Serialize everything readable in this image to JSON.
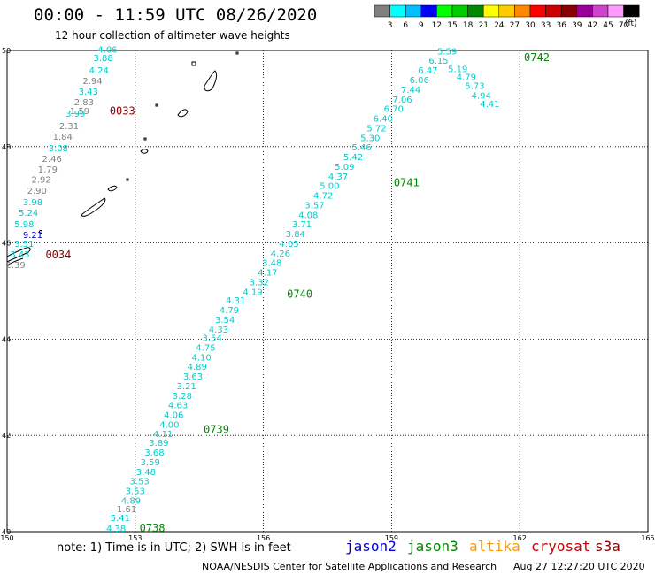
{
  "title": "00:00 - 11:59 UTC 08/26/2020",
  "subtitle": "12 hour collection of altimeter wave heights",
  "legend": {
    "colors": [
      "#808080",
      "#00ffff",
      "#00bfff",
      "#0000ff",
      "#00ff00",
      "#00cc00",
      "#008800",
      "#ffff00",
      "#ffcc00",
      "#ff8800",
      "#ff0000",
      "#cc0000",
      "#880000",
      "#990099",
      "#cc44cc",
      "#ff99ff",
      "#000000"
    ],
    "ticks": [
      "3",
      "6",
      "9",
      "12",
      "15",
      "18",
      "21",
      "24",
      "27",
      "30",
      "33",
      "36",
      "39",
      "42",
      "45",
      "70"
    ],
    "unit": "(ft)"
  },
  "map": {
    "lon_ticks": [
      "150",
      "153",
      "156",
      "159",
      "162",
      "165"
    ],
    "lat_ticks": [
      "50",
      "48",
      "46",
      "44",
      "42",
      "40"
    ],
    "lon_range": [
      150,
      165
    ],
    "lat_range": [
      40,
      50
    ],
    "grid": true
  },
  "tracks": [
    {
      "label": "0033",
      "label_lon": 152.4,
      "label_lat": 48.67,
      "label_color": "#880000",
      "points": [
        {
          "v": "4.06",
          "lon": 152.35,
          "lat": 49.95,
          "c": "#00cccc"
        },
        {
          "v": "3.88",
          "lon": 152.25,
          "lat": 49.78,
          "c": "#00cccc"
        },
        {
          "v": "4.24",
          "lon": 152.15,
          "lat": 49.52,
          "c": "#00cccc"
        },
        {
          "v": "2.94",
          "lon": 152.0,
          "lat": 49.3,
          "c": "#808080"
        },
        {
          "v": "3.43",
          "lon": 151.9,
          "lat": 49.08,
          "c": "#00cccc"
        },
        {
          "v": "2.83",
          "lon": 151.8,
          "lat": 48.86,
          "c": "#808080"
        },
        {
          "v": "1.59",
          "lon": 151.7,
          "lat": 48.68,
          "c": "#808080"
        },
        {
          "v": "3.99",
          "lon": 151.6,
          "lat": 48.62,
          "c": "#00cccc"
        },
        {
          "v": "2.31",
          "lon": 151.45,
          "lat": 48.36,
          "c": "#808080"
        },
        {
          "v": "1.84",
          "lon": 151.3,
          "lat": 48.14,
          "c": "#808080"
        },
        {
          "v": "3.08",
          "lon": 151.2,
          "lat": 47.9,
          "c": "#00cccc"
        },
        {
          "v": "2.46",
          "lon": 151.05,
          "lat": 47.68,
          "c": "#808080"
        },
        {
          "v": "1.79",
          "lon": 150.95,
          "lat": 47.46,
          "c": "#808080"
        },
        {
          "v": "2.92",
          "lon": 150.8,
          "lat": 47.25,
          "c": "#808080"
        },
        {
          "v": "2.90",
          "lon": 150.7,
          "lat": 47.02,
          "c": "#808080"
        },
        {
          "v": "3.98",
          "lon": 150.6,
          "lat": 46.78,
          "c": "#00cccc"
        },
        {
          "v": "5.24",
          "lon": 150.5,
          "lat": 46.56,
          "c": "#00cccc"
        },
        {
          "v": "5.98",
          "lon": 150.4,
          "lat": 46.32,
          "c": "#00cccc"
        }
      ]
    },
    {
      "label": "0034",
      "label_lon": 150.9,
      "label_lat": 45.68,
      "label_color": "#880000",
      "points": [
        {
          "v": "9.21",
          "lon": 150.6,
          "lat": 46.1,
          "c": "#0000cc"
        },
        {
          "v": "3.51",
          "lon": 150.4,
          "lat": 45.92,
          "c": "#00cccc"
        },
        {
          "v": "3.43",
          "lon": 150.3,
          "lat": 45.7,
          "c": "#00cccc"
        },
        {
          "v": "2.39",
          "lon": 150.2,
          "lat": 45.48,
          "c": "#808080"
        }
      ]
    },
    {
      "label": "0738",
      "label_lon": 153.1,
      "label_lat": 40.0,
      "label_color": "#008800",
      "points": [
        {
          "v": "4.38",
          "lon": 152.55,
          "lat": 40.0,
          "c": "#00cccc"
        },
        {
          "v": "5.41",
          "lon": 152.65,
          "lat": 40.22,
          "c": "#00cccc"
        },
        {
          "v": "1.61",
          "lon": 152.8,
          "lat": 40.4,
          "c": "#808080"
        },
        {
          "v": "4.89",
          "lon": 152.9,
          "lat": 40.58,
          "c": "#00cccc"
        },
        {
          "v": "3.53",
          "lon": 153.0,
          "lat": 40.78,
          "c": "#00cccc"
        },
        {
          "v": "3.53",
          "lon": 153.1,
          "lat": 40.98,
          "c": "#00cccc"
        },
        {
          "v": "3.48",
          "lon": 153.25,
          "lat": 41.18,
          "c": "#00cccc"
        },
        {
          "v": "3.59",
          "lon": 153.35,
          "lat": 41.38,
          "c": "#00cccc"
        },
        {
          "v": "3.68",
          "lon": 153.45,
          "lat": 41.58,
          "c": "#00cccc"
        },
        {
          "v": "3.89",
          "lon": 153.55,
          "lat": 41.78,
          "c": "#00cccc"
        },
        {
          "v": "4.11",
          "lon": 153.65,
          "lat": 41.97,
          "c": "#00cccc"
        }
      ]
    },
    {
      "label": "0739",
      "label_lon": 154.6,
      "label_lat": 42.05,
      "label_color": "#008800",
      "points": [
        {
          "v": "4.00",
          "lon": 153.8,
          "lat": 42.16,
          "c": "#00cccc"
        },
        {
          "v": "4.06",
          "lon": 153.9,
          "lat": 42.36,
          "c": "#00cccc"
        },
        {
          "v": "4.63",
          "lon": 154.0,
          "lat": 42.56,
          "c": "#00cccc"
        },
        {
          "v": "3.28",
          "lon": 154.1,
          "lat": 42.76,
          "c": "#00cccc"
        },
        {
          "v": "3.21",
          "lon": 154.2,
          "lat": 42.96,
          "c": "#00cccc"
        },
        {
          "v": "3.63",
          "lon": 154.35,
          "lat": 43.16,
          "c": "#00cccc"
        },
        {
          "v": "4.89",
          "lon": 154.45,
          "lat": 43.36,
          "c": "#00cccc"
        },
        {
          "v": "4.10",
          "lon": 154.55,
          "lat": 43.56,
          "c": "#00cccc"
        },
        {
          "v": "4.75",
          "lon": 154.65,
          "lat": 43.76,
          "c": "#00cccc"
        },
        {
          "v": "3.54",
          "lon": 154.8,
          "lat": 43.96,
          "c": "#00cccc"
        },
        {
          "v": "4.33",
          "lon": 154.95,
          "lat": 44.14,
          "c": "#00cccc"
        },
        {
          "v": "3.54",
          "lon": 155.1,
          "lat": 44.34,
          "c": "#00cccc"
        },
        {
          "v": "4.79",
          "lon": 155.2,
          "lat": 44.54,
          "c": "#00cccc"
        },
        {
          "v": "4.31",
          "lon": 155.35,
          "lat": 44.74,
          "c": "#00cccc"
        }
      ]
    },
    {
      "label": "0740",
      "label_lon": 156.55,
      "label_lat": 44.86,
      "label_color": "#008800",
      "points": [
        {
          "v": "4.19",
          "lon": 155.75,
          "lat": 44.92,
          "c": "#00cccc"
        },
        {
          "v": "3.32",
          "lon": 155.9,
          "lat": 45.12,
          "c": "#00cccc"
        },
        {
          "v": "4.17",
          "lon": 156.1,
          "lat": 45.32,
          "c": "#00cccc"
        },
        {
          "v": "3.48",
          "lon": 156.2,
          "lat": 45.52,
          "c": "#00cccc"
        },
        {
          "v": "4.26",
          "lon": 156.4,
          "lat": 45.72,
          "c": "#00cccc"
        },
        {
          "v": "4.05",
          "lon": 156.6,
          "lat": 45.92,
          "c": "#00cccc"
        },
        {
          "v": "3.84",
          "lon": 156.75,
          "lat": 46.12,
          "c": "#00cccc"
        },
        {
          "v": "3.71",
          "lon": 156.9,
          "lat": 46.32,
          "c": "#00cccc"
        },
        {
          "v": "4.08",
          "lon": 157.05,
          "lat": 46.52,
          "c": "#00cccc"
        },
        {
          "v": "3.57",
          "lon": 157.2,
          "lat": 46.72,
          "c": "#00cccc"
        },
        {
          "v": "4.72",
          "lon": 157.4,
          "lat": 46.92,
          "c": "#00cccc"
        },
        {
          "v": "5.00",
          "lon": 157.55,
          "lat": 47.12,
          "c": "#00cccc"
        },
        {
          "v": "4.37",
          "lon": 157.75,
          "lat": 47.32,
          "c": "#00cccc"
        },
        {
          "v": "5.09",
          "lon": 157.9,
          "lat": 47.52,
          "c": "#00cccc"
        },
        {
          "v": "5.42",
          "lon": 158.1,
          "lat": 47.72,
          "c": "#00cccc"
        },
        {
          "v": "5.46",
          "lon": 158.3,
          "lat": 47.92,
          "c": "#00cccc"
        },
        {
          "v": "5.30",
          "lon": 158.5,
          "lat": 48.12,
          "c": "#00cccc"
        }
      ]
    },
    {
      "label": "0741",
      "label_lon": 159.05,
      "label_lat": 47.18,
      "label_color": "#008800",
      "points": [
        {
          "v": "5.72",
          "lon": 158.65,
          "lat": 48.32,
          "c": "#00cccc"
        },
        {
          "v": "6.40",
          "lon": 158.8,
          "lat": 48.52,
          "c": "#00cccc"
        },
        {
          "v": "6.70",
          "lon": 159.05,
          "lat": 48.72,
          "c": "#00cccc"
        },
        {
          "v": "7.06",
          "lon": 159.25,
          "lat": 48.92,
          "c": "#00cccc"
        },
        {
          "v": "7.44",
          "lon": 159.45,
          "lat": 49.12,
          "c": "#00cccc"
        },
        {
          "v": "6.06",
          "lon": 159.65,
          "lat": 49.32,
          "c": "#00cccc"
        },
        {
          "v": "6.47",
          "lon": 159.85,
          "lat": 49.52,
          "c": "#00cccc"
        },
        {
          "v": "6.15",
          "lon": 160.1,
          "lat": 49.72,
          "c": "#00cccc"
        },
        {
          "v": "5.59",
          "lon": 160.3,
          "lat": 49.92,
          "c": "#00cccc"
        }
      ]
    },
    {
      "label": "0742",
      "label_lon": 162.1,
      "label_lat": 49.78,
      "label_color": "#008800",
      "points": [
        {
          "v": "5.19",
          "lon": 160.55,
          "lat": 49.55,
          "c": "#00cccc"
        },
        {
          "v": "4.79",
          "lon": 160.75,
          "lat": 49.38,
          "c": "#00cccc"
        },
        {
          "v": "5.73",
          "lon": 160.95,
          "lat": 49.2,
          "c": "#00cccc"
        },
        {
          "v": "4.94",
          "lon": 161.1,
          "lat": 49.0,
          "c": "#00cccc"
        },
        {
          "v": "4.41",
          "lon": 161.3,
          "lat": 48.82,
          "c": "#00cccc"
        }
      ]
    }
  ],
  "note": "note: 1) Time is in UTC; 2) SWH is in feet",
  "satellites": [
    {
      "name": "jason2",
      "color": "#0000cc"
    },
    {
      "name": "jason3",
      "color": "#008800"
    },
    {
      "name": "altika",
      "color": "#ff9900"
    },
    {
      "name": "cryosat",
      "color": "#cc0000"
    },
    {
      "name": "s3a",
      "color": "#880000"
    }
  ],
  "credit": "NOAA/NESDIS Center for Satellite Applications and Research",
  "credit_time": "Aug 27 12:27:20 UTC 2020"
}
